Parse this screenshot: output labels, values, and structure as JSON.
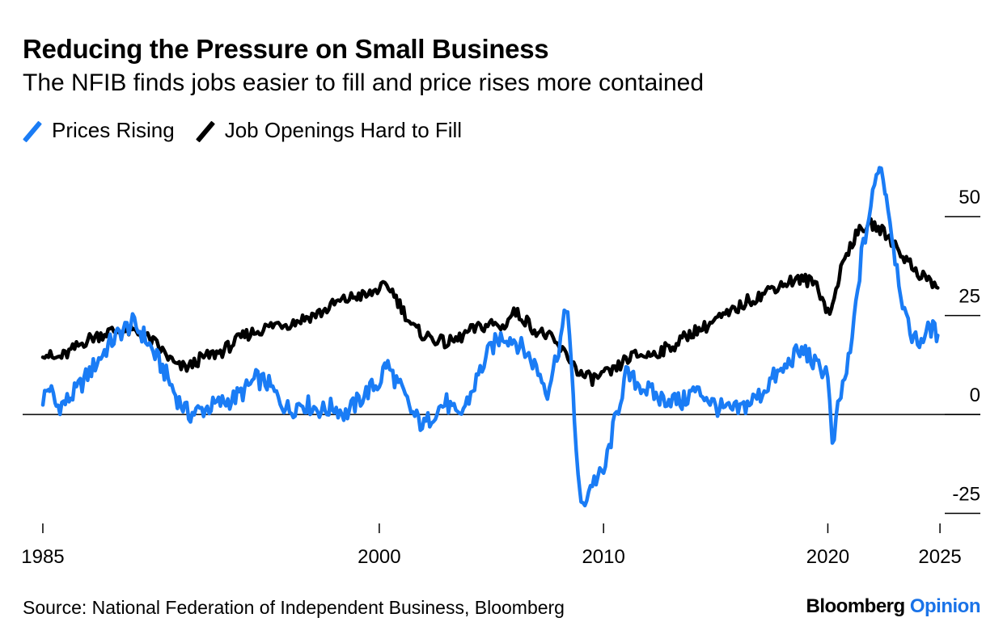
{
  "chart_data": {
    "type": "line",
    "title": "Reducing the Pressure on Small Business",
    "subtitle": "The NFIB finds jobs easier to fill and price rises more contained",
    "xlim": [
      1984.1,
      2026.8
    ],
    "ylim": [
      -30,
      67
    ],
    "y_ticks": [
      50,
      25,
      0,
      -25
    ],
    "x_ticks": [
      1985,
      2000,
      2010,
      2020,
      2025
    ],
    "grid": false,
    "legend_position": "top-left",
    "series": [
      {
        "name": "Prices Rising",
        "color": "#1a7cf5",
        "x": [
          1985.0,
          1985.3,
          1985.6,
          1986.0,
          1986.5,
          1987.0,
          1987.5,
          1988.0,
          1988.5,
          1989.0,
          1989.5,
          1990.0,
          1990.5,
          1991.0,
          1991.5,
          1992.0,
          1992.5,
          1993.0,
          1993.5,
          1994.0,
          1994.5,
          1995.0,
          1995.5,
          1996.0,
          1996.5,
          1997.0,
          1997.5,
          1998.0,
          1998.5,
          1999.0,
          1999.5,
          2000.0,
          2000.3,
          2000.6,
          2001.0,
          2001.5,
          2002.0,
          2002.5,
          2003.0,
          2003.5,
          2004.0,
          2004.5,
          2005.0,
          2005.5,
          2006.0,
          2006.5,
          2007.0,
          2007.5,
          2008.0,
          2008.4,
          2008.7,
          2009.0,
          2009.5,
          2010.0,
          2010.5,
          2011.0,
          2011.5,
          2012.0,
          2012.5,
          2013.0,
          2013.5,
          2014.0,
          2014.5,
          2015.0,
          2015.5,
          2016.0,
          2016.5,
          2017.0,
          2017.5,
          2018.0,
          2018.5,
          2019.0,
          2019.5,
          2020.0,
          2020.2,
          2020.5,
          2021.0,
          2021.5,
          2022.0,
          2022.3,
          2022.6,
          2023.0,
          2023.5,
          2024.0,
          2024.3,
          2024.6,
          2024.9
        ],
        "y": [
          4,
          7,
          2,
          3,
          6,
          10,
          14,
          18,
          21,
          23,
          20,
          15,
          10,
          4,
          0,
          1,
          2,
          3,
          4,
          6,
          9,
          8,
          4,
          1,
          3,
          2,
          1,
          2,
          0,
          3,
          6,
          8,
          13,
          10,
          6,
          0,
          -3,
          1,
          3,
          -1,
          4,
          11,
          17,
          20,
          19,
          16,
          12,
          6,
          17,
          28,
          -2,
          -24,
          -17,
          -15,
          -2,
          10,
          8,
          6,
          4,
          4,
          3,
          6,
          5,
          2,
          1,
          1,
          3,
          5,
          9,
          11,
          15,
          16,
          12,
          11,
          -9,
          3,
          15,
          40,
          55,
          64,
          56,
          40,
          23,
          18,
          20,
          22,
          20
        ]
      },
      {
        "name": "Job Openings Hard to Fill",
        "color": "#000000",
        "x": [
          1985.0,
          1985.5,
          1986.0,
          1986.5,
          1987.0,
          1987.5,
          1988.0,
          1988.5,
          1989.0,
          1989.5,
          1990.0,
          1990.5,
          1991.0,
          1991.5,
          1992.0,
          1992.5,
          1993.0,
          1993.5,
          1994.0,
          1994.5,
          1995.0,
          1995.5,
          1996.0,
          1996.5,
          1997.0,
          1997.5,
          1998.0,
          1998.5,
          1999.0,
          1999.5,
          2000.0,
          2000.5,
          2001.0,
          2001.5,
          2002.0,
          2002.5,
          2003.0,
          2003.5,
          2004.0,
          2004.5,
          2005.0,
          2005.5,
          2006.0,
          2006.5,
          2007.0,
          2007.5,
          2008.0,
          2008.5,
          2009.0,
          2009.5,
          2010.0,
          2010.5,
          2011.0,
          2011.5,
          2012.0,
          2012.5,
          2013.0,
          2013.5,
          2014.0,
          2014.5,
          2015.0,
          2015.5,
          2016.0,
          2016.5,
          2017.0,
          2017.5,
          2018.0,
          2018.5,
          2019.0,
          2019.5,
          2020.0,
          2020.2,
          2020.5,
          2021.0,
          2021.5,
          2022.0,
          2022.5,
          2023.0,
          2023.5,
          2024.0,
          2024.5,
          2024.9
        ],
        "y": [
          16,
          14,
          15,
          17,
          19,
          20,
          21,
          21,
          21,
          20,
          18,
          15,
          12,
          12,
          14,
          15,
          16,
          18,
          20,
          21,
          22,
          23,
          23,
          24,
          25,
          26,
          28,
          29,
          30,
          30,
          32,
          32,
          27,
          22,
          20,
          19,
          18,
          19,
          21,
          22,
          23,
          22,
          26,
          24,
          21,
          20,
          17,
          14,
          10,
          9,
          10,
          11,
          14,
          15,
          15,
          16,
          17,
          19,
          21,
          22,
          24,
          25,
          27,
          29,
          30,
          32,
          33,
          34,
          34,
          33,
          26,
          27,
          35,
          43,
          47,
          48,
          46,
          43,
          39,
          36,
          34,
          32
        ]
      }
    ]
  },
  "source": "Source: National Federation of Independent Business, Bloomberg",
  "brand": {
    "part1": "Bloomberg",
    "part2": "Opinion"
  }
}
